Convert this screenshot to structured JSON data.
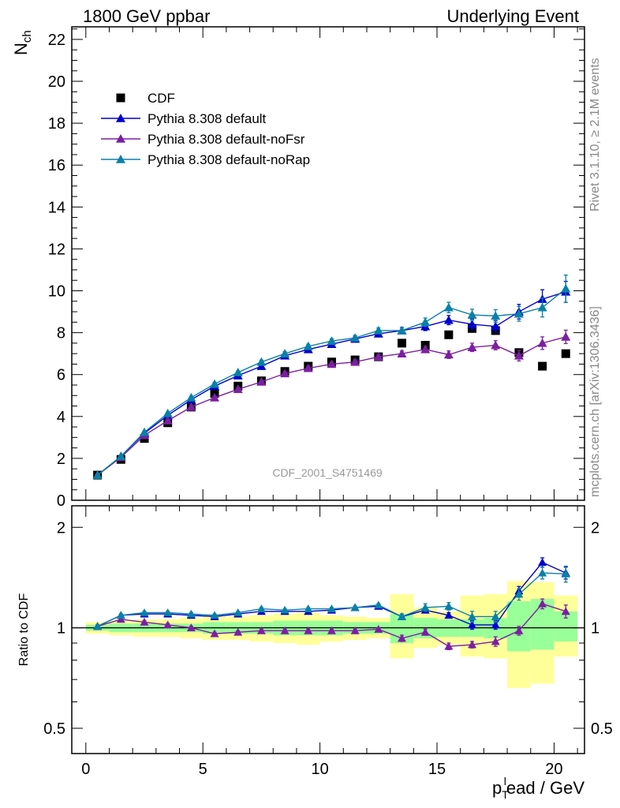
{
  "header": {
    "left": "1800 GeV ppbar",
    "right": "Underlying Event"
  },
  "side_labels": {
    "rivet": "Rivet 3.1.10, ≥ 2.1M events",
    "mcplots": "mcplots.cern.ch [arXiv:1306.3436]"
  },
  "watermark": "CDF_2001_S4751469",
  "colors": {
    "data": "#000000",
    "default": "#0000cc",
    "noFsr": "#7b1fa2",
    "noRap": "#0a80a8",
    "band_inner": "#99ff99",
    "band_outer": "#ffff99"
  },
  "chart_data": [
    {
      "type": "scatter",
      "panel": "main",
      "ylabel_main": "N",
      "ylabel_sub": "ch",
      "xlim": [
        -0.6,
        21.3
      ],
      "ylim": [
        0,
        22.6
      ],
      "yticks": [
        0,
        2,
        4,
        6,
        8,
        10,
        12,
        14,
        16,
        18,
        20,
        22
      ],
      "x": [
        0.5,
        1.5,
        2.5,
        3.5,
        4.5,
        5.5,
        6.5,
        7.5,
        8.5,
        9.5,
        10.5,
        11.5,
        12.5,
        13.5,
        14.5,
        15.5,
        16.5,
        17.5,
        18.5,
        19.5,
        20.5
      ],
      "legend_position": "top-left",
      "series": [
        {
          "name": "CDF",
          "key": "data",
          "marker": "square",
          "values": [
            1.2,
            1.95,
            2.95,
            3.7,
            4.45,
            5.1,
            5.45,
            5.7,
            6.15,
            6.4,
            6.6,
            6.7,
            6.85,
            7.5,
            7.4,
            7.9,
            8.2,
            8.1,
            7.05,
            6.4,
            7.0
          ],
          "errors": [
            0,
            0,
            0,
            0,
            0,
            0,
            0,
            0,
            0,
            0,
            0,
            0,
            0,
            0,
            0,
            0,
            0,
            0,
            0,
            0,
            0
          ]
        },
        {
          "name": "Pythia 8.308 default",
          "key": "default",
          "marker": "triangle",
          "values": [
            1.2,
            2.1,
            3.2,
            4.05,
            4.8,
            5.45,
            5.95,
            6.4,
            6.9,
            7.2,
            7.45,
            7.7,
            7.95,
            8.1,
            8.3,
            8.6,
            8.4,
            8.3,
            9.0,
            9.6,
            9.95
          ],
          "errors": [
            0.03,
            0.04,
            0.05,
            0.06,
            0.07,
            0.08,
            0.08,
            0.09,
            0.1,
            0.1,
            0.11,
            0.12,
            0.13,
            0.15,
            0.2,
            0.22,
            0.25,
            0.28,
            0.35,
            0.45,
            0.5
          ]
        },
        {
          "name": "Pythia 8.308 default-noFsr",
          "key": "noFsr",
          "marker": "triangle",
          "values": [
            1.2,
            2.05,
            3.1,
            3.8,
            4.45,
            4.9,
            5.3,
            5.65,
            6.05,
            6.3,
            6.5,
            6.6,
            6.85,
            7.0,
            7.2,
            6.95,
            7.3,
            7.4,
            6.9,
            7.5,
            7.8
          ],
          "errors": [
            0.03,
            0.04,
            0.05,
            0.06,
            0.07,
            0.07,
            0.08,
            0.08,
            0.09,
            0.1,
            0.1,
            0.11,
            0.12,
            0.13,
            0.15,
            0.18,
            0.2,
            0.22,
            0.25,
            0.3,
            0.32
          ]
        },
        {
          "name": "Pythia 8.308 default-noRap",
          "key": "noRap",
          "marker": "triangle",
          "values": [
            1.2,
            2.1,
            3.25,
            4.15,
            4.9,
            5.55,
            6.1,
            6.6,
            7.0,
            7.35,
            7.6,
            7.75,
            8.1,
            8.1,
            8.5,
            9.2,
            8.85,
            8.8,
            8.9,
            9.2,
            10.1
          ],
          "errors": [
            0.03,
            0.04,
            0.05,
            0.06,
            0.07,
            0.08,
            0.08,
            0.09,
            0.1,
            0.1,
            0.11,
            0.12,
            0.13,
            0.15,
            0.2,
            0.25,
            0.27,
            0.3,
            0.35,
            0.45,
            0.65
          ]
        }
      ]
    },
    {
      "type": "line",
      "panel": "ratio",
      "ylabel": "Ratio to CDF",
      "xlabel_main": "p",
      "xlabel_sub": "T",
      "xlabel_sup": "l",
      "xlabel_rest": "ead / GeV",
      "xlim": [
        -0.6,
        21.3
      ],
      "ylim": [
        0.42,
        2.32
      ],
      "log_y": true,
      "yticks": [
        0.5,
        1,
        2
      ],
      "ytick_labels": [
        "0.5",
        "1",
        "2"
      ],
      "xticks": [
        0,
        5,
        10,
        15,
        20
      ],
      "xtick_labels": [
        "0",
        "5",
        "10",
        "15",
        "20"
      ],
      "x": [
        0.5,
        1.5,
        2.5,
        3.5,
        4.5,
        5.5,
        6.5,
        7.5,
        8.5,
        9.5,
        10.5,
        11.5,
        12.5,
        13.5,
        14.5,
        15.5,
        16.5,
        17.5,
        18.5,
        19.5,
        20.5
      ],
      "bands": {
        "edges": [
          0,
          1,
          2,
          3,
          4,
          5,
          6,
          7,
          8,
          9,
          10,
          11,
          12,
          13,
          14,
          15,
          16,
          17,
          18,
          19,
          20,
          21
        ],
        "inner_lo": [
          0.98,
          0.97,
          0.97,
          0.97,
          0.97,
          0.96,
          0.96,
          0.96,
          0.95,
          0.95,
          0.95,
          0.96,
          0.96,
          0.9,
          0.93,
          0.94,
          0.94,
          0.93,
          0.85,
          0.86,
          0.91
        ],
        "inner_hi": [
          1.02,
          1.03,
          1.03,
          1.03,
          1.03,
          1.04,
          1.04,
          1.04,
          1.05,
          1.05,
          1.05,
          1.04,
          1.04,
          1.1,
          1.07,
          1.06,
          1.06,
          1.07,
          1.2,
          1.22,
          1.12
        ],
        "outer_lo": [
          0.96,
          0.95,
          0.94,
          0.94,
          0.93,
          0.92,
          0.92,
          0.91,
          0.9,
          0.89,
          0.91,
          0.92,
          0.93,
          0.81,
          0.87,
          0.89,
          0.82,
          0.81,
          0.66,
          0.68,
          0.82
        ],
        "outer_hi": [
          1.04,
          1.05,
          1.06,
          1.06,
          1.07,
          1.08,
          1.08,
          1.09,
          1.1,
          1.11,
          1.09,
          1.08,
          1.07,
          1.26,
          1.15,
          1.12,
          1.25,
          1.26,
          1.38,
          1.37,
          1.25
        ]
      },
      "series": [
        {
          "name": "Pythia 8.308 default",
          "key": "default",
          "values": [
            1.01,
            1.09,
            1.1,
            1.1,
            1.09,
            1.08,
            1.1,
            1.12,
            1.12,
            1.12,
            1.13,
            1.15,
            1.16,
            1.08,
            1.13,
            1.09,
            1.02,
            1.02,
            1.29,
            1.57,
            1.46
          ],
          "errors": [
            0.01,
            0.01,
            0.01,
            0.01,
            0.01,
            0.01,
            0.01,
            0.01,
            0.01,
            0.01,
            0.01,
            0.01,
            0.01,
            0.02,
            0.02,
            0.02,
            0.03,
            0.03,
            0.04,
            0.05,
            0.06
          ]
        },
        {
          "name": "Pythia 8.308 default-noFsr",
          "key": "noFsr",
          "values": [
            1.01,
            1.06,
            1.04,
            1.02,
            1.0,
            0.96,
            0.97,
            0.98,
            0.98,
            0.98,
            0.98,
            0.98,
            0.99,
            0.93,
            0.97,
            0.88,
            0.89,
            0.91,
            0.98,
            1.18,
            1.12
          ],
          "errors": [
            0.01,
            0.01,
            0.01,
            0.01,
            0.01,
            0.01,
            0.01,
            0.01,
            0.01,
            0.01,
            0.01,
            0.01,
            0.01,
            0.02,
            0.02,
            0.02,
            0.02,
            0.03,
            0.03,
            0.04,
            0.05
          ]
        },
        {
          "name": "Pythia 8.308 default-noRap",
          "key": "noRap",
          "values": [
            1.01,
            1.09,
            1.11,
            1.11,
            1.1,
            1.09,
            1.11,
            1.14,
            1.13,
            1.14,
            1.14,
            1.15,
            1.17,
            1.08,
            1.15,
            1.16,
            1.08,
            1.08,
            1.26,
            1.46,
            1.45
          ],
          "errors": [
            0.01,
            0.01,
            0.01,
            0.01,
            0.01,
            0.01,
            0.01,
            0.01,
            0.01,
            0.01,
            0.01,
            0.01,
            0.01,
            0.02,
            0.03,
            0.03,
            0.04,
            0.04,
            0.05,
            0.06,
            0.08
          ]
        }
      ]
    }
  ]
}
